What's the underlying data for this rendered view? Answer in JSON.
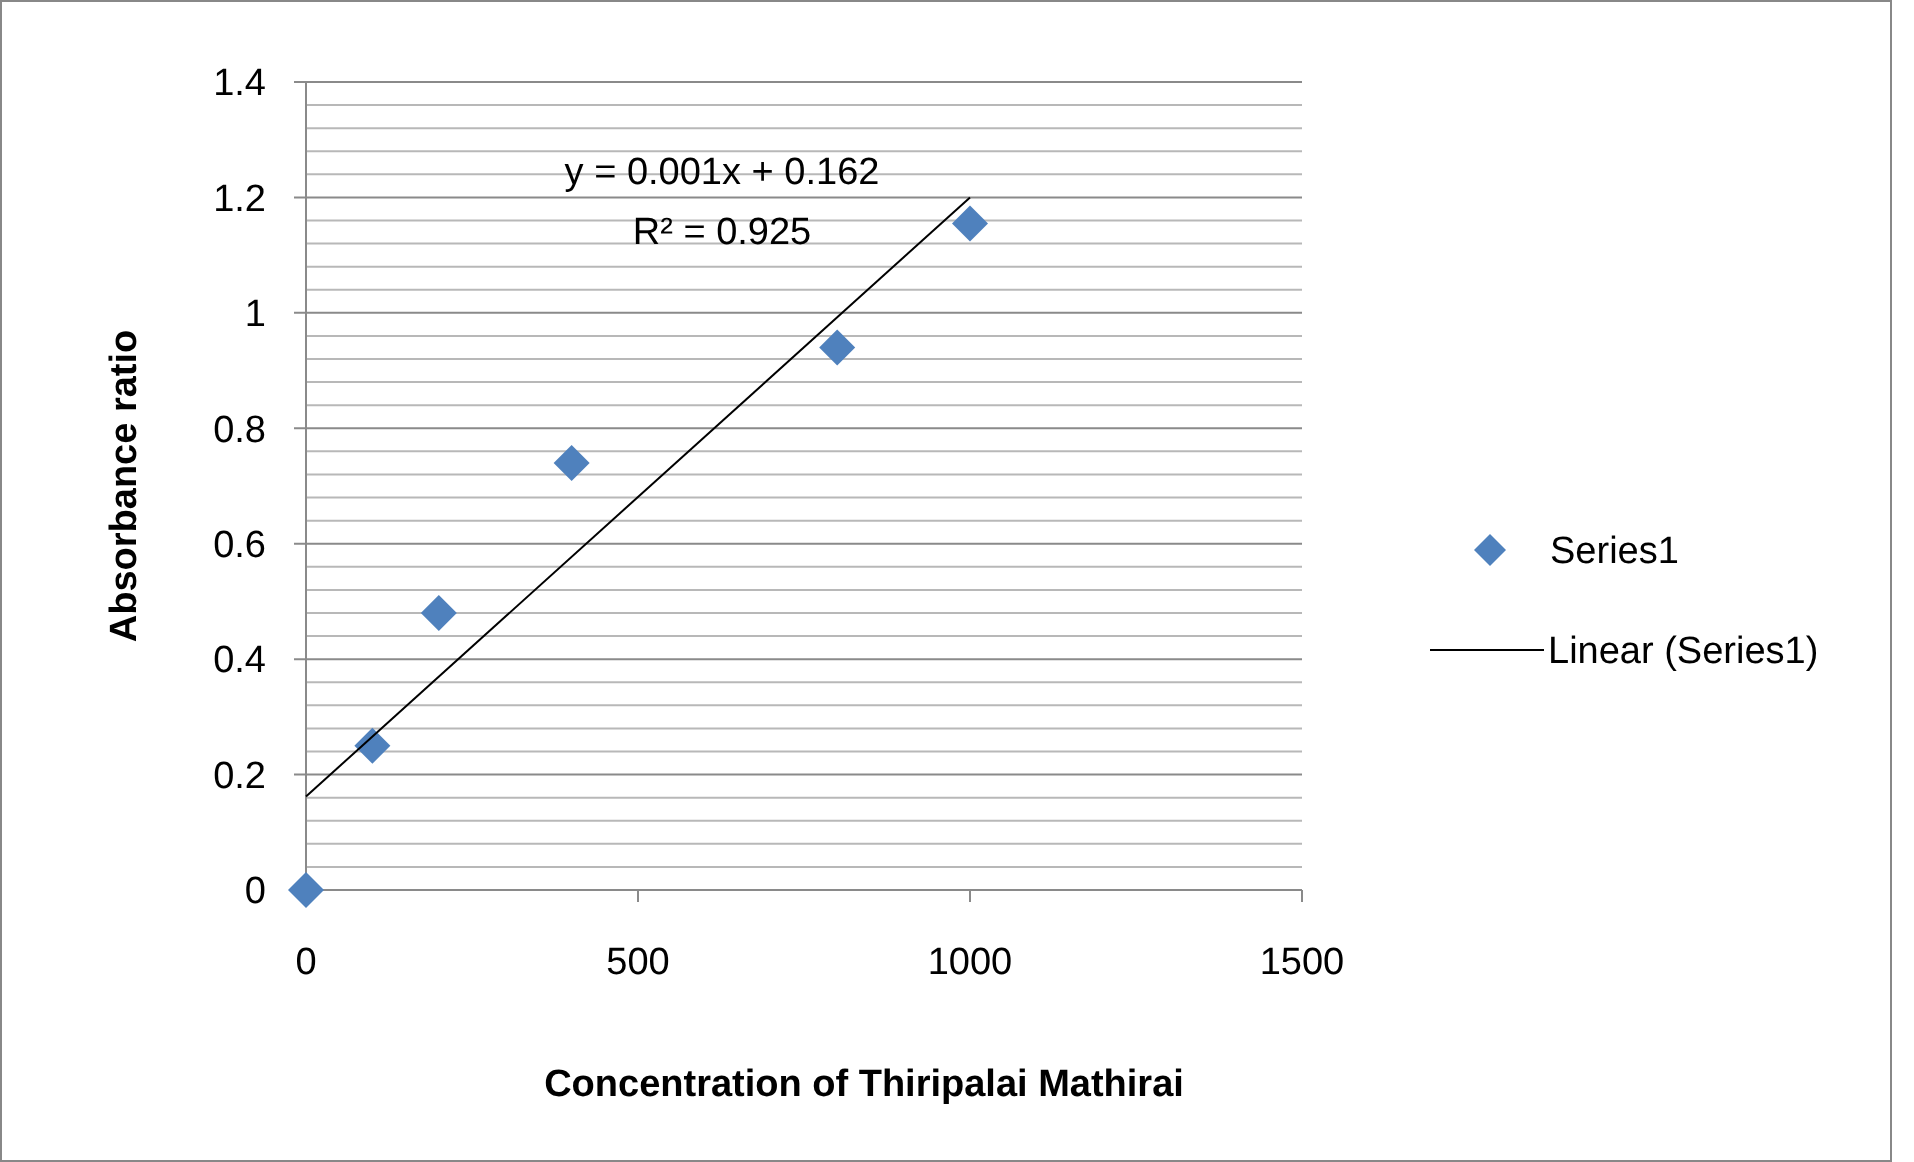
{
  "chart_data": {
    "type": "scatter",
    "xlabel": "Concentration of Thiripalai Mathirai",
    "ylabel": "Absorbance ratio",
    "annotations": [
      "y = 0.001x + 0.162",
      "R² = 0.925"
    ],
    "series": [
      {
        "name": "Series1",
        "color": "#4f81bd",
        "x": [
          0,
          100,
          200,
          400,
          800,
          1000
        ],
        "values": [
          0,
          0.25,
          0.48,
          0.74,
          0.94,
          1.155
        ],
        "marker": "diamond"
      },
      {
        "name": "Linear (Series1)",
        "type": "line",
        "color": "#000000",
        "x": [
          0,
          1000
        ],
        "values": [
          0.162,
          1.2
        ],
        "line_style": "solid"
      }
    ],
    "xlim": [
      0,
      1500
    ],
    "xticks": [
      0,
      500,
      1000,
      1500
    ],
    "ylim": [
      0,
      1.4
    ],
    "yticks": [
      0,
      {
        "value": 0.04,
        "label": null
      },
      {
        "value": 0.08,
        "label": null
      },
      {
        "value": 0.12,
        "label": null
      },
      {
        "value": 0.16,
        "label": null
      },
      0.2,
      {
        "value": 0.24,
        "label": null
      },
      {
        "value": 0.28,
        "label": null
      },
      {
        "value": 0.32,
        "label": null
      },
      {
        "value": 0.36,
        "label": null
      },
      0.4,
      {
        "value": 0.44,
        "label": null
      },
      {
        "value": 0.48,
        "label": null
      },
      {
        "value": 0.52,
        "label": null
      },
      {
        "value": 0.56,
        "label": null
      },
      0.6,
      {
        "value": 0.64,
        "label": null
      },
      {
        "value": 0.68,
        "label": null
      },
      {
        "value": 0.72,
        "label": null
      },
      {
        "value": 0.76,
        "label": null
      },
      0.8,
      {
        "value": 0.84,
        "label": null
      },
      {
        "value": 0.88,
        "label": null
      },
      {
        "value": 0.92,
        "label": null
      },
      {
        "value": 0.96,
        "label": null
      },
      1,
      {
        "value": 1.04,
        "label": null
      },
      {
        "value": 1.08,
        "label": null
      },
      {
        "value": 1.12,
        "label": null
      },
      {
        "value": 1.16,
        "label": null
      },
      1.2,
      {
        "value": 1.24,
        "label": null
      },
      {
        "value": 1.28,
        "label": null
      },
      {
        "value": 1.32,
        "label": null
      },
      {
        "value": 1.36,
        "label": null
      },
      1.4
    ],
    "grid": "y",
    "legend": "right"
  }
}
